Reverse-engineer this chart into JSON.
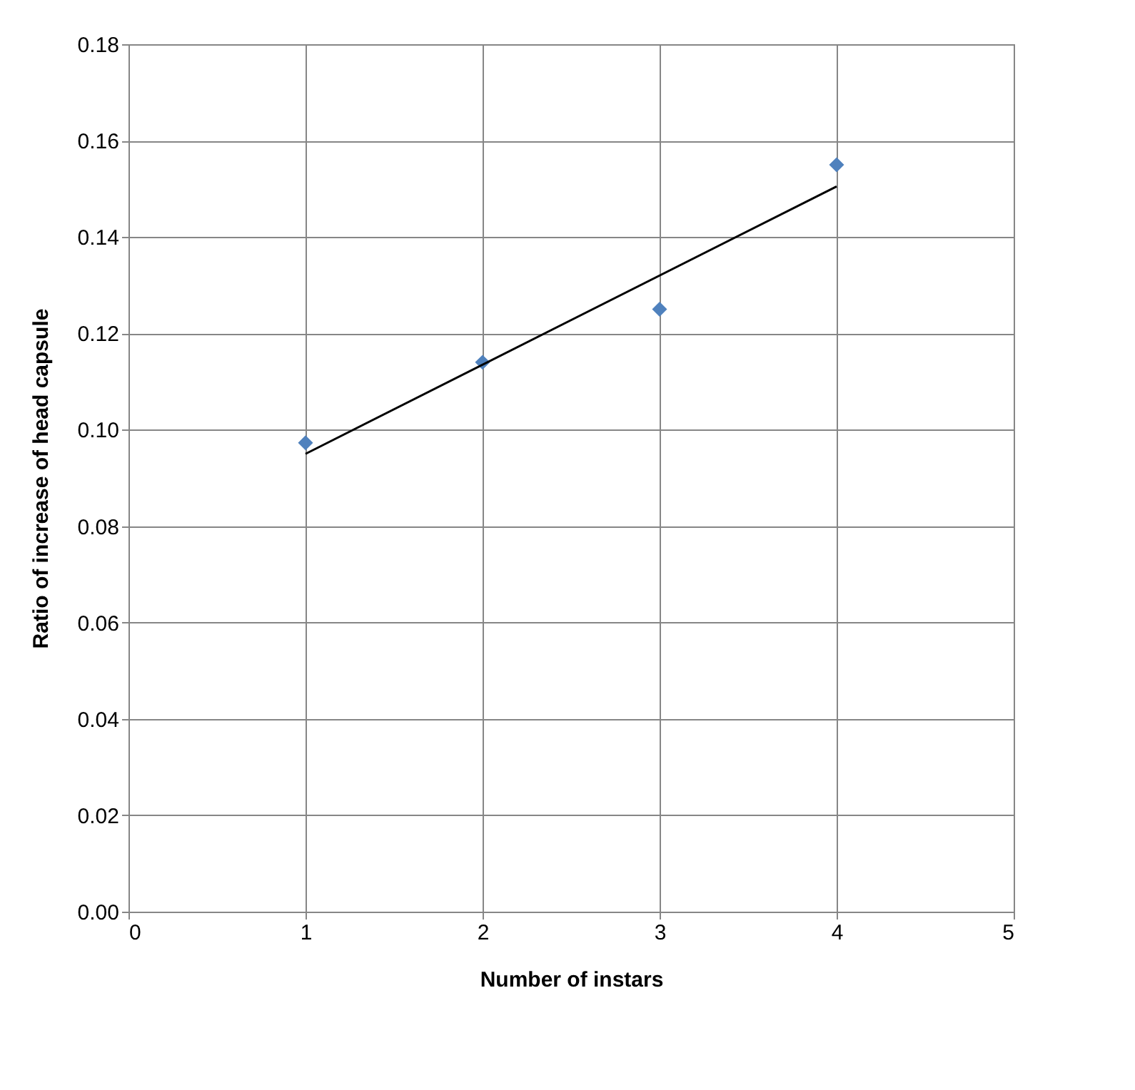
{
  "chart_data": {
    "type": "scatter",
    "xlabel": "Number of instars",
    "ylabel": "Ratio of increase of head capsule",
    "xlim": [
      0,
      5
    ],
    "xticks": [
      0,
      1,
      2,
      3,
      4,
      5
    ],
    "ylim": [
      0,
      0.18
    ],
    "yticks": [
      {
        "value": 0,
        "label": "0.00"
      },
      {
        "value": 0.02,
        "label": "0.02"
      },
      {
        "value": 0.04,
        "label": "0.04"
      },
      {
        "value": 0.06,
        "label": "0.06"
      },
      {
        "value": 0.08,
        "label": "0.08"
      },
      {
        "value": 0.1,
        "label": "0.10"
      },
      {
        "value": 0.12,
        "label": "0.12"
      },
      {
        "value": 0.14,
        "label": "0.14"
      },
      {
        "value": 0.16,
        "label": "0.16"
      },
      {
        "value": 0.18,
        "label": "0.18"
      }
    ],
    "grid": true,
    "series": [
      {
        "color": "#4f81bd",
        "marker": "diamond",
        "x": [
          1,
          2,
          3,
          4
        ],
        "values": [
          0.0973,
          0.114,
          0.125,
          0.155
        ]
      },
      {
        "type": "line",
        "color": "#000000",
        "x": [
          1,
          4
        ],
        "values": [
          0.095,
          0.1505
        ]
      }
    ]
  }
}
